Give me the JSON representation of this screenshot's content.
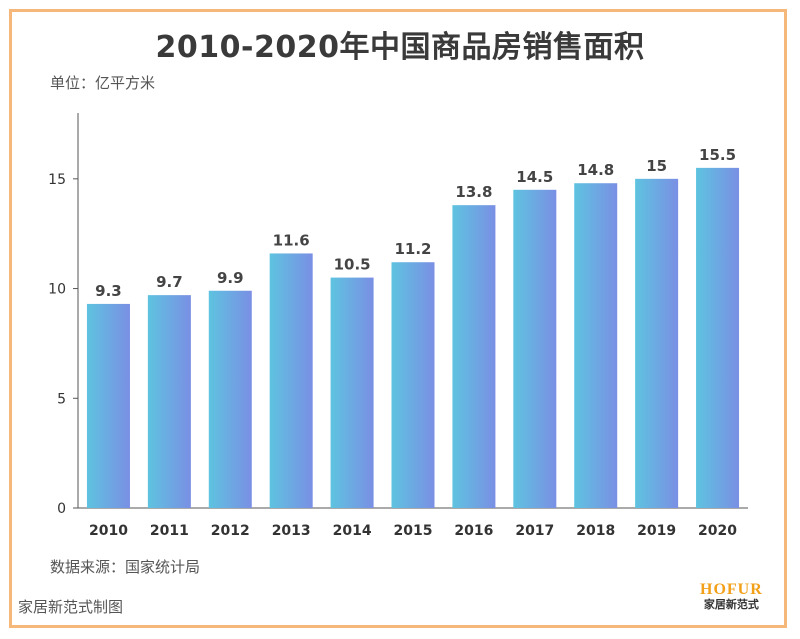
{
  "title": "2010-2020年中国商品房销售面积",
  "unit_label": "单位：亿平方米",
  "source_label": "数据来源：国家统计局",
  "footer_left": "家居新范式制图",
  "logo": {
    "en": "HOFUR",
    "cn": "家居新范式"
  },
  "colors": {
    "bar_start": "#5ec3e0",
    "bar_end": "#7a8fe4",
    "frame": "#f5b87a",
    "logo": "#f3a019"
  },
  "chart_data": {
    "type": "bar",
    "title": "2010-2020年中国商品房销售面积",
    "ylabel": "单位：亿平方米",
    "xlabel": "",
    "categories": [
      "2010",
      "2011",
      "2012",
      "2013",
      "2014",
      "2015",
      "2016",
      "2017",
      "2018",
      "2019",
      "2020"
    ],
    "values": [
      9.3,
      9.7,
      9.9,
      11.6,
      10.5,
      11.2,
      13.8,
      14.5,
      14.8,
      15,
      15.5
    ],
    "value_labels": [
      "9.3",
      "9.7",
      "9.9",
      "11.6",
      "10.5",
      "11.2",
      "13.8",
      "14.5",
      "14.8",
      "15",
      "15.5"
    ],
    "yticks": [
      0,
      5,
      10,
      15
    ],
    "ytick_labels": [
      "0",
      "5",
      "10",
      "15"
    ],
    "ylim": [
      0,
      18
    ],
    "grid": false,
    "legend": "none"
  }
}
